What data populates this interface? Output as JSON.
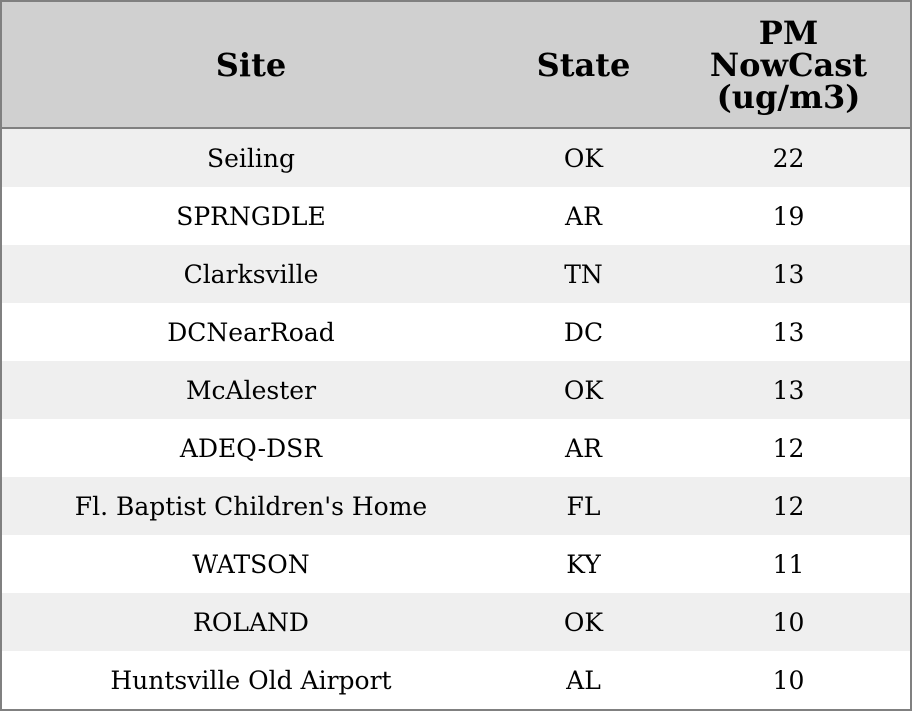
{
  "table": {
    "header": [
      "Site",
      "State",
      "PM NowCast (ug/m3)"
    ],
    "rows": [
      [
        "Seiling",
        "OK",
        22
      ],
      [
        "SPRNGDLE",
        "AR",
        19
      ],
      [
        "Clarksville",
        "TN",
        13
      ],
      [
        "DCNearRoad",
        "DC",
        13
      ],
      [
        "McAlester",
        "OK",
        13
      ],
      [
        "ADEQ-DSR",
        "AR",
        12
      ],
      [
        "Fl. Baptist Children's Home",
        "FL",
        12
      ],
      [
        "WATSON",
        "KY",
        11
      ],
      [
        "ROLAND",
        "OK",
        10
      ],
      [
        "Huntsville Old Airport",
        "AL",
        10
      ]
    ]
  }
}
